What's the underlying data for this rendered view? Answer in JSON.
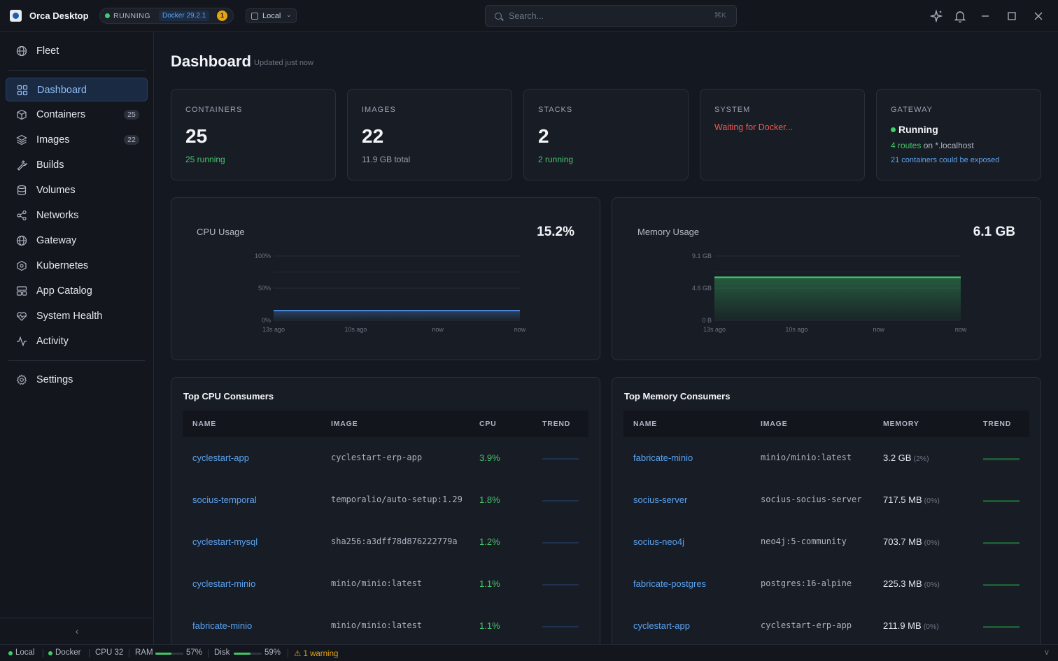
{
  "app": {
    "name": "Orca Desktop",
    "status": "RUNNING",
    "docker_version": "Docker 29.2.1",
    "notification_count": "1",
    "context": "Local"
  },
  "search": {
    "placeholder": "Search...",
    "shortcut": "⌘K"
  },
  "sidebar": {
    "fleet": "Fleet",
    "items": [
      {
        "label": "Dashboard",
        "icon": "dashboard-icon"
      },
      {
        "label": "Containers",
        "count": "25",
        "icon": "box-icon"
      },
      {
        "label": "Images",
        "count": "22",
        "icon": "layers-icon"
      },
      {
        "label": "Builds",
        "icon": "wrench-icon"
      },
      {
        "label": "Volumes",
        "icon": "database-icon"
      },
      {
        "label": "Networks",
        "icon": "share-icon"
      },
      {
        "label": "Gateway",
        "icon": "globe-icon"
      },
      {
        "label": "Kubernetes",
        "icon": "hexagon-icon"
      },
      {
        "label": "App Catalog",
        "icon": "catalog-icon"
      },
      {
        "label": "System Health",
        "icon": "heart-pulse-icon"
      },
      {
        "label": "Activity",
        "icon": "activity-icon"
      }
    ],
    "settings": "Settings"
  },
  "page": {
    "title": "Dashboard",
    "updated": "Updated just now"
  },
  "cards": {
    "containers": {
      "title": "CONTAINERS",
      "value": "25",
      "sub": "25 running"
    },
    "images": {
      "title": "IMAGES",
      "value": "22",
      "sub": "11.9 GB total"
    },
    "stacks": {
      "title": "STACKS",
      "value": "2",
      "sub": "2 running"
    },
    "system": {
      "title": "SYSTEM",
      "status": "Waiting for Docker..."
    },
    "gateway": {
      "title": "GATEWAY",
      "status": "Running",
      "routes": "4 routes",
      "routes_suffix": "on *.localhost",
      "exposable": "21 containers could be exposed"
    }
  },
  "cpu_panel": {
    "title": "CPU Usage",
    "value": "15.2%"
  },
  "mem_panel": {
    "title": "Memory Usage",
    "value": "6.1 GB"
  },
  "chart_data": [
    {
      "type": "area",
      "title": "CPU Usage",
      "x": [
        "13s ago",
        "10s ago",
        "now",
        "now"
      ],
      "yticks": [
        "100%",
        "50%",
        "0%"
      ],
      "ylim": [
        0,
        100
      ],
      "series": [
        {
          "values": [
            15.2,
            15.2,
            15.2,
            15.2
          ],
          "color": "#4a86d4"
        }
      ]
    },
    {
      "type": "area",
      "title": "Memory Usage",
      "x": [
        "13s ago",
        "10s ago",
        "now",
        "now"
      ],
      "yticks": [
        "9.1 GB",
        "4.6 GB",
        "0 B"
      ],
      "ylim": [
        0,
        9.1
      ],
      "series": [
        {
          "values": [
            6.1,
            6.1,
            6.1,
            6.1
          ],
          "color": "#3fcf6a"
        }
      ]
    }
  ],
  "top_cpu": {
    "title": "Top CPU Consumers",
    "headers": [
      "NAME",
      "IMAGE",
      "CPU",
      "TREND"
    ],
    "rows": [
      {
        "name": "cyclestart-app",
        "image": "cyclestart-erp-app",
        "cpu": "3.9%"
      },
      {
        "name": "socius-temporal",
        "image": "temporalio/auto-setup:1.29",
        "cpu": "1.8%"
      },
      {
        "name": "cyclestart-mysql",
        "image": "sha256:a3dff78d876222779a",
        "cpu": "1.2%"
      },
      {
        "name": "cyclestart-minio",
        "image": "minio/minio:latest",
        "cpu": "1.1%"
      },
      {
        "name": "fabricate-minio",
        "image": "minio/minio:latest",
        "cpu": "1.1%"
      }
    ]
  },
  "top_mem": {
    "title": "Top Memory Consumers",
    "headers": [
      "NAME",
      "IMAGE",
      "MEMORY",
      "TREND"
    ],
    "rows": [
      {
        "name": "fabricate-minio",
        "image": "minio/minio:latest",
        "mem": "3.2 GB",
        "pct": "(2%)"
      },
      {
        "name": "socius-server",
        "image": "socius-socius-server",
        "mem": "717.5 MB",
        "pct": "(0%)"
      },
      {
        "name": "socius-neo4j",
        "image": "neo4j:5-community",
        "mem": "703.7 MB",
        "pct": "(0%)"
      },
      {
        "name": "fabricate-postgres",
        "image": "postgres:16-alpine",
        "mem": "225.3 MB",
        "pct": "(0%)"
      },
      {
        "name": "cyclestart-app",
        "image": "cyclestart-erp-app",
        "mem": "211.9 MB",
        "pct": "(0%)"
      }
    ]
  },
  "statusbar": {
    "local": "Local",
    "docker": "Docker",
    "cpu": "CPU 32",
    "ram_label": "RAM",
    "ram_pct": "57%",
    "ram_value": 0.57,
    "disk_label": "Disk",
    "disk_pct": "59%",
    "disk_value": 0.59,
    "warning": "1 warning",
    "version": "v"
  }
}
